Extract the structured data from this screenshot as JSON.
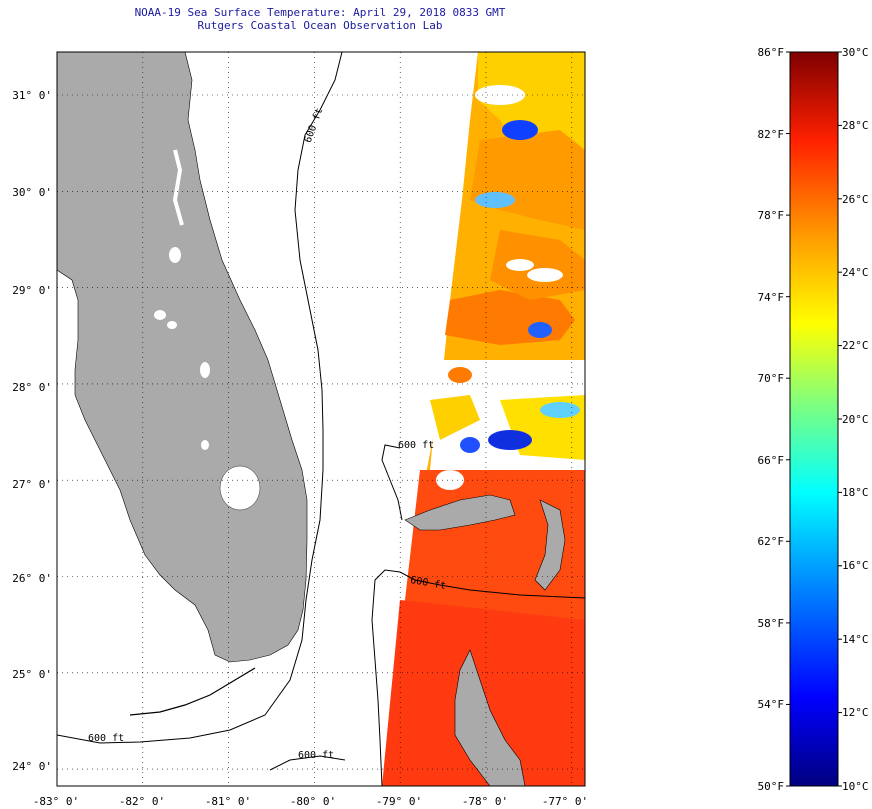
{
  "header": {
    "title_line1": "NOAA-19 Sea Surface Temperature:  April 29, 2018 0833 GMT",
    "title_line2": "Rutgers Coastal Ocean Observation Lab"
  },
  "map": {
    "lat_labels": [
      {
        "text": "31° 0'",
        "lat": 31
      },
      {
        "text": "30° 0'",
        "lat": 30
      },
      {
        "text": "29° 0'",
        "lat": 29
      },
      {
        "text": "28° 0'",
        "lat": 28
      },
      {
        "text": "27° 0'",
        "lat": 27
      },
      {
        "text": "26° 0'",
        "lat": 26
      },
      {
        "text": "25° 0'",
        "lat": 25
      },
      {
        "text": "24° 0'",
        "lat": 24
      }
    ],
    "lon_labels": [
      {
        "text": "-83° 0'",
        "lon": -83
      },
      {
        "text": "-82° 0'",
        "lon": -82
      },
      {
        "text": "-81° 0'",
        "lon": -81
      },
      {
        "text": "-80° 0'",
        "lon": -80
      },
      {
        "text": "-79° 0'",
        "lon": -79
      },
      {
        "text": "-78° 0'",
        "lon": -78
      },
      {
        "text": "-77° 0'",
        "lon": -77
      }
    ],
    "isobath_labels": [
      "600 ft",
      "600 ft",
      "600 ft",
      "600 ft",
      "600 ft"
    ],
    "colors": {
      "land": "#aaaaaa",
      "ocean": "#ffffff",
      "grid": "#000000"
    }
  },
  "colorbar": {
    "fahrenheit": [
      "86°F",
      "82°F",
      "78°F",
      "74°F",
      "70°F",
      "66°F",
      "62°F",
      "58°F",
      "54°F",
      "50°F"
    ],
    "celsius": [
      "30°C",
      "28°C",
      "26°C",
      "24°C",
      "22°C",
      "20°C",
      "18°C",
      "16°C",
      "14°C",
      "12°C",
      "10°C"
    ],
    "range_f": [
      50,
      86
    ],
    "range_c": [
      10,
      30
    ],
    "stops": [
      "#00007f",
      "#0000ff",
      "#00a0ff",
      "#00ffff",
      "#7fff7f",
      "#ffff00",
      "#ff9a00",
      "#ff2000",
      "#7f0000"
    ]
  }
}
